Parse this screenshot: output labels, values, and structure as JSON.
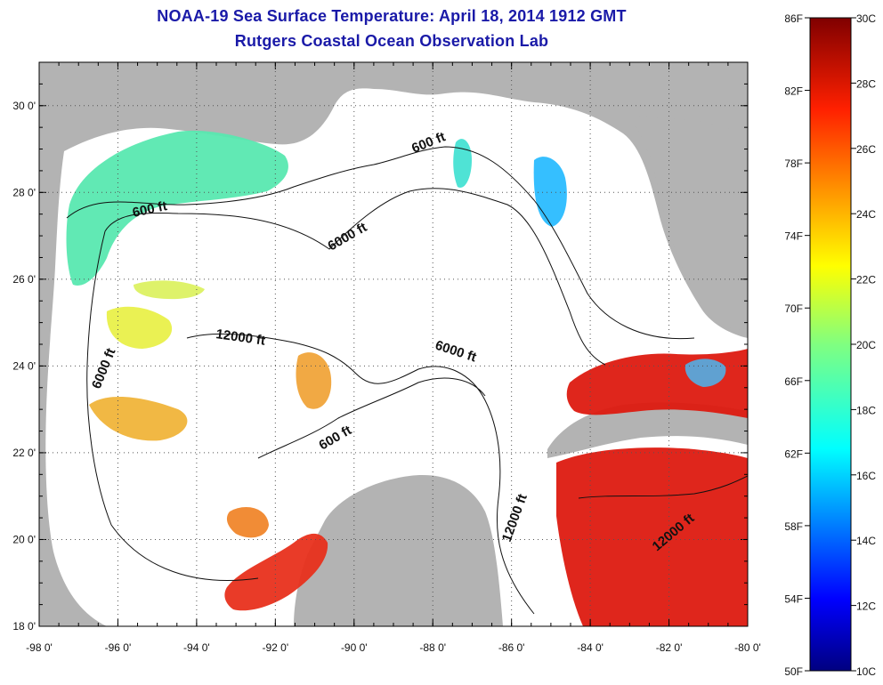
{
  "title": "NOAA-19 Sea Surface Temperature:  April 18, 2014 1912 GMT",
  "subtitle": "Rutgers Coastal Ocean Observation Lab",
  "axes": {
    "x_ticks": [
      "-98 0'",
      "-96 0'",
      "-94 0'",
      "-92 0'",
      "-90 0'",
      "-88 0'",
      "-86 0'",
      "-84 0'",
      "-82 0'",
      "-80 0'"
    ],
    "y_ticks": [
      "30 0'",
      "28 0'",
      "26 0'",
      "24 0'",
      "22 0'",
      "20 0'",
      "18 0'"
    ]
  },
  "contour_labels": [
    {
      "id": "c600-west",
      "text": "600 ft"
    },
    {
      "id": "c600-north",
      "text": "600 ft"
    },
    {
      "id": "c6000-north",
      "text": "6000 ft"
    },
    {
      "id": "c12000-west",
      "text": "12000 ft"
    },
    {
      "id": "c6000-central",
      "text": "6000 ft"
    },
    {
      "id": "c6000-west",
      "text": "6000 ft"
    },
    {
      "id": "c600-south",
      "text": "600 ft"
    },
    {
      "id": "c12000-south",
      "text": "12000 ft"
    },
    {
      "id": "c12000-east",
      "text": "12000 ft"
    }
  ],
  "colorbar": {
    "fahrenheit_labels": [
      "86F",
      "82F",
      "78F",
      "74F",
      "70F",
      "66F",
      "62F",
      "58F",
      "54F",
      "50F"
    ],
    "celsius_labels": [
      "30C",
      "28C",
      "26C",
      "24C",
      "22C",
      "20C",
      "18C",
      "16C",
      "14C",
      "12C",
      "10C"
    ]
  },
  "colors": {
    "title": "#1a1aa8",
    "land": "#b3b3b3",
    "water_nodata": "#ffffff",
    "warm": "#dd1a10",
    "cool": "#4ce0a0"
  }
}
